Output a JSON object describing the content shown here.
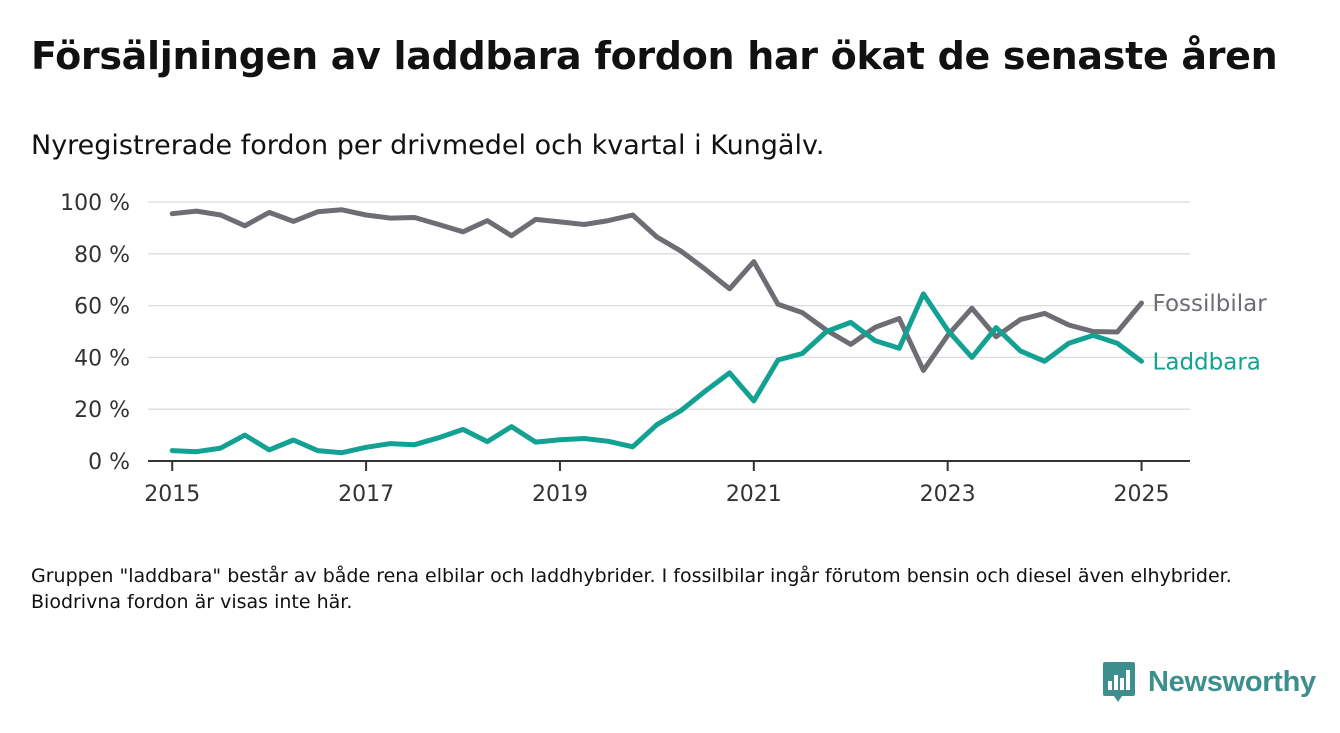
{
  "title": "Försäljningen av laddbara fordon har ökat de senaste åren",
  "subtitle": "Nyregistrerade fordon per drivmedel och kvartal i Kungälv.",
  "note": "Gruppen \"laddbara\" består av både rena elbilar och laddhybrider. I fossilbilar ingår förutom bensin och diesel även elhybrider. Biodrivna fordon är visas inte här.",
  "logo": {
    "text": "Newsworthy",
    "icon": "newsworthy-chart-icon",
    "color": "#3d8f8d"
  },
  "chart_data": {
    "type": "line",
    "x_ticks": [
      "2015",
      "2017",
      "2019",
      "2021",
      "2023",
      "2025"
    ],
    "y_ticks": [
      "0 %",
      "20 %",
      "40 %",
      "60 %",
      "80 %",
      "100 %"
    ],
    "ylim": [
      0,
      100
    ],
    "xlim": [
      "2014-10",
      "2025-07"
    ],
    "grid": "horizontal",
    "x": [
      "2015-Q1",
      "2015-Q2",
      "2015-Q3",
      "2015-Q4",
      "2016-Q1",
      "2016-Q2",
      "2016-Q3",
      "2016-Q4",
      "2017-Q1",
      "2017-Q2",
      "2017-Q3",
      "2017-Q4",
      "2018-Q1",
      "2018-Q2",
      "2018-Q3",
      "2018-Q4",
      "2019-Q1",
      "2019-Q2",
      "2019-Q3",
      "2019-Q4",
      "2020-Q1",
      "2020-Q2",
      "2020-Q3",
      "2020-Q4",
      "2021-Q1",
      "2021-Q2",
      "2021-Q3",
      "2021-Q4",
      "2022-Q1",
      "2022-Q2",
      "2022-Q3",
      "2022-Q4",
      "2023-Q1",
      "2023-Q2",
      "2023-Q3",
      "2023-Q4",
      "2024-Q1",
      "2024-Q2",
      "2024-Q3",
      "2024-Q4",
      "2025-Q1"
    ],
    "series": [
      {
        "name": "Fossilbilar",
        "color": "#6e6d73",
        "values": [
          95.5,
          96.5,
          95,
          90.8,
          96,
          92.5,
          96.2,
          97,
          95,
          93.8,
          94,
          91.3,
          88.5,
          92.8,
          87,
          93.3,
          92.3,
          91.3,
          92.8,
          95,
          86.5,
          81,
          74,
          66.5,
          77,
          60.5,
          57.3,
          50.5,
          45,
          51.6,
          55,
          35,
          48.5,
          59,
          48,
          54.6,
          57,
          52.5,
          50,
          49.8,
          61
        ]
      },
      {
        "name": "Laddbara",
        "color": "#12a192",
        "values": [
          4,
          3.6,
          5,
          10,
          4.3,
          8.1,
          4,
          3.2,
          5.3,
          6.7,
          6.3,
          9,
          12.2,
          7.5,
          13.3,
          7.3,
          8.2,
          8.7,
          7.6,
          5.5,
          14,
          19.5,
          27,
          34,
          23.2,
          39,
          41.5,
          50,
          53.5,
          46.5,
          43.5,
          64.5,
          50.5,
          40,
          51.5,
          42.5,
          38.5,
          45.5,
          48.5,
          45.5,
          38.5
        ]
      }
    ]
  }
}
